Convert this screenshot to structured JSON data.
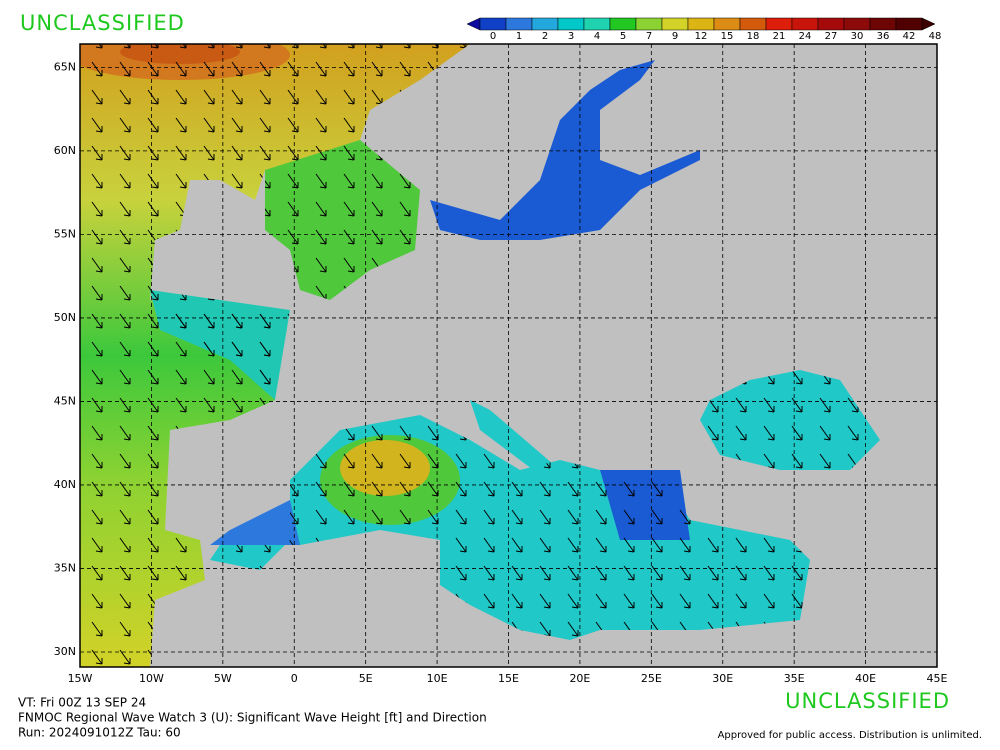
{
  "header": {
    "classification": "UNCLASSIFIED"
  },
  "colorbar": {
    "ticks": [
      0,
      1,
      2,
      3,
      4,
      5,
      7,
      9,
      12,
      15,
      18,
      21,
      24,
      27,
      30,
      36,
      42,
      48
    ],
    "colors": [
      "#1040c8",
      "#2c78dc",
      "#22a8dc",
      "#00c8c8",
      "#20d2b0",
      "#22c822",
      "#8cd232",
      "#d2d228",
      "#dcb414",
      "#dc8c14",
      "#d25a0a",
      "#dc1e0a",
      "#c8140a",
      "#a50a0a",
      "#8c0a0a",
      "#6e0505",
      "#500000"
    ]
  },
  "map": {
    "lonlim": [
      -15,
      45
    ],
    "latlim": [
      29.1,
      66.4
    ],
    "lon_ticks": [
      {
        "value": -15,
        "label": "15W"
      },
      {
        "value": -10,
        "label": "10W"
      },
      {
        "value": -5,
        "label": "5W"
      },
      0,
      {
        "value": 5,
        "label": "5E"
      },
      {
        "value": 10,
        "label": "10E"
      },
      {
        "value": 15,
        "label": "15E"
      },
      {
        "value": 20,
        "label": "20E"
      },
      {
        "value": 25,
        "label": "25E"
      },
      {
        "value": 30,
        "label": "30E"
      },
      {
        "value": 35,
        "label": "35E"
      },
      {
        "value": 40,
        "label": "40E"
      },
      {
        "value": 45,
        "label": "45E"
      }
    ],
    "lat_ticks": [
      {
        "value": 30,
        "label": "30N"
      },
      {
        "value": 35,
        "label": "35N"
      },
      {
        "value": 40,
        "label": "40N"
      },
      {
        "value": 45,
        "label": "45N"
      },
      {
        "value": 50,
        "label": "50N"
      },
      {
        "value": 55,
        "label": "55N"
      },
      {
        "value": 60,
        "label": "60N"
      },
      {
        "value": 65,
        "label": "65N"
      }
    ]
  },
  "footer": {
    "classification": "UNCLASSIFIED",
    "valid_time": "VT: Fri 00Z 13 SEP 24",
    "product": "FNMOC Regional Wave Watch 3 (U): Significant Wave Height [ft] and Direction",
    "run": "Run: 2024091012Z Tau: 60",
    "release": "Approved for public access. Distribution is unlimited."
  }
}
